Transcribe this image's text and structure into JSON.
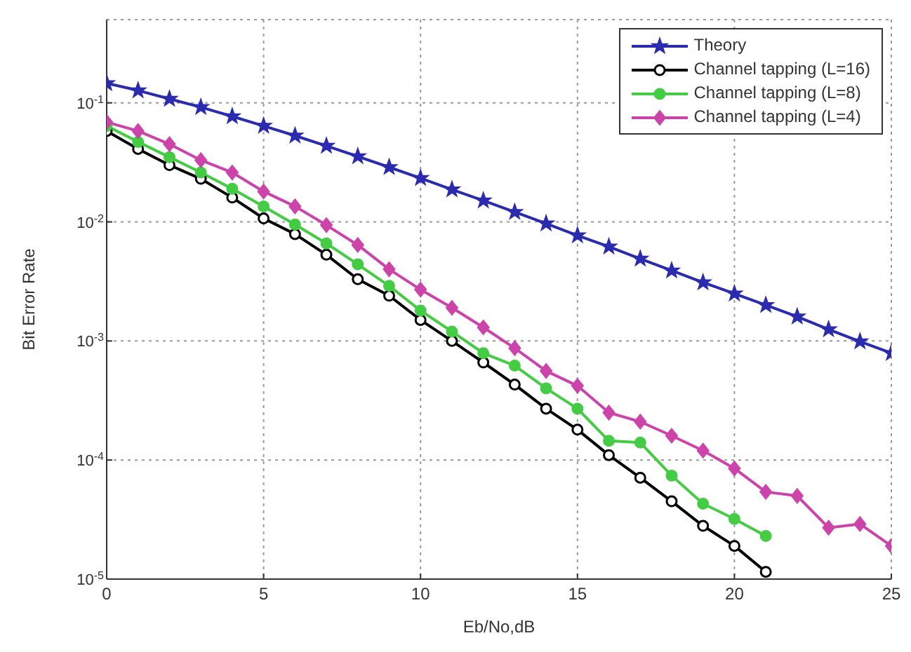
{
  "chart_data": {
    "type": "line",
    "xlabel": "Eb/No,dB",
    "ylabel": "Bit Error Rate",
    "log": "y",
    "grid": true,
    "legend": "top right",
    "line_style": "solid",
    "x": [
      0,
      1,
      2,
      3,
      4,
      5,
      6,
      7,
      8,
      9,
      10,
      11,
      12,
      13,
      14,
      15,
      16,
      17,
      18,
      19,
      20,
      21,
      22,
      23,
      24,
      25
    ],
    "xlim": [
      0,
      25
    ],
    "xticks": [
      0,
      5,
      10,
      15,
      20,
      25
    ],
    "ylim": [
      1e-05,
      0.5
    ],
    "yticks": [
      {
        "value": 1e-05,
        "label": "10$^{-5}$"
      },
      {
        "value": 0.0001,
        "label": "10$^{-4}$"
      },
      {
        "value": 0.001,
        "label": "10$^{-3}$"
      },
      {
        "value": 0.01,
        "label": "10$^{-2}$"
      },
      {
        "value": 0.1,
        "label": "10$^{-1}$"
      }
    ],
    "series": [
      {
        "name": "Theory",
        "color": "#2b2bb0",
        "marker": "star",
        "values": [
          0.146,
          0.127,
          0.108,
          0.092,
          0.077,
          0.064,
          0.053,
          0.0435,
          0.0355,
          0.0288,
          0.0233,
          0.0187,
          0.0151,
          0.0121,
          0.0097,
          0.0077,
          0.0062,
          0.0049,
          0.0039,
          0.0031,
          0.0025,
          0.002,
          0.0016,
          0.00125,
          0.00099,
          0.00079
        ]
      },
      {
        "name": "Channel tapping (L=16)",
        "color": "#000000",
        "marker": "circle",
        "values": [
          0.058,
          0.041,
          0.03,
          0.023,
          0.016,
          0.0107,
          0.0079,
          0.0053,
          0.0033,
          0.0024,
          0.0015,
          0.001,
          0.00066,
          0.00043,
          0.00027,
          0.00018,
          0.00011,
          7.1e-05,
          4.5e-05,
          2.8e-05,
          1.9e-05,
          1.15e-05,
          null,
          null,
          null,
          null
        ]
      },
      {
        "name": "Channel tapping (L=8)",
        "color": "#44cc44",
        "marker": "circle",
        "values": [
          0.064,
          0.047,
          0.035,
          0.026,
          0.019,
          0.0135,
          0.0095,
          0.0066,
          0.0044,
          0.0029,
          0.0018,
          0.0012,
          0.00079,
          0.00062,
          0.0004,
          0.00027,
          0.000145,
          0.00014,
          7.4e-05,
          4.3e-05,
          3.2e-05,
          2.3e-05,
          null,
          null,
          null,
          null
        ]
      },
      {
        "name": "Channel tapping (L=4)",
        "color": "#cc44aa",
        "marker": "diamond",
        "values": [
          0.069,
          0.058,
          0.045,
          0.033,
          0.026,
          0.018,
          0.0135,
          0.0094,
          0.0064,
          0.004,
          0.0027,
          0.0019,
          0.0013,
          0.00087,
          0.00056,
          0.00042,
          0.00025,
          0.00021,
          0.00016,
          0.00012,
          8.5e-05,
          5.4e-05,
          5e-05,
          2.7e-05,
          2.9e-05,
          1.9e-05
        ]
      }
    ]
  }
}
